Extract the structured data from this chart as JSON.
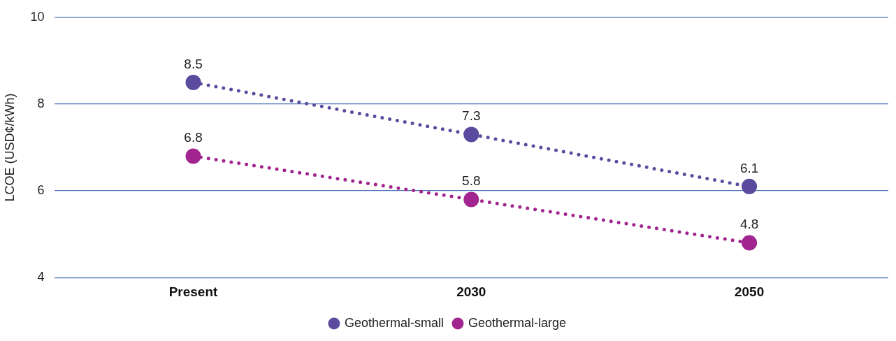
{
  "chart_data": {
    "type": "line",
    "ylabel": "LCOE (USD¢/kWh)",
    "categories": [
      "Present",
      "2030",
      "2050"
    ],
    "series": [
      {
        "name": "Geothermal-small",
        "color": "#5b4b9f",
        "values": [
          8.5,
          7.3,
          6.1
        ]
      },
      {
        "name": "Geothermal-large",
        "color": "#a1248f",
        "values": [
          6.8,
          5.8,
          4.8
        ]
      }
    ],
    "ylim": [
      4,
      10
    ],
    "yticks": [
      4,
      6,
      8,
      10
    ],
    "grid": "y",
    "legend": "bottom",
    "marker": "circle",
    "line_style": "dotted",
    "data_labels": true
  }
}
